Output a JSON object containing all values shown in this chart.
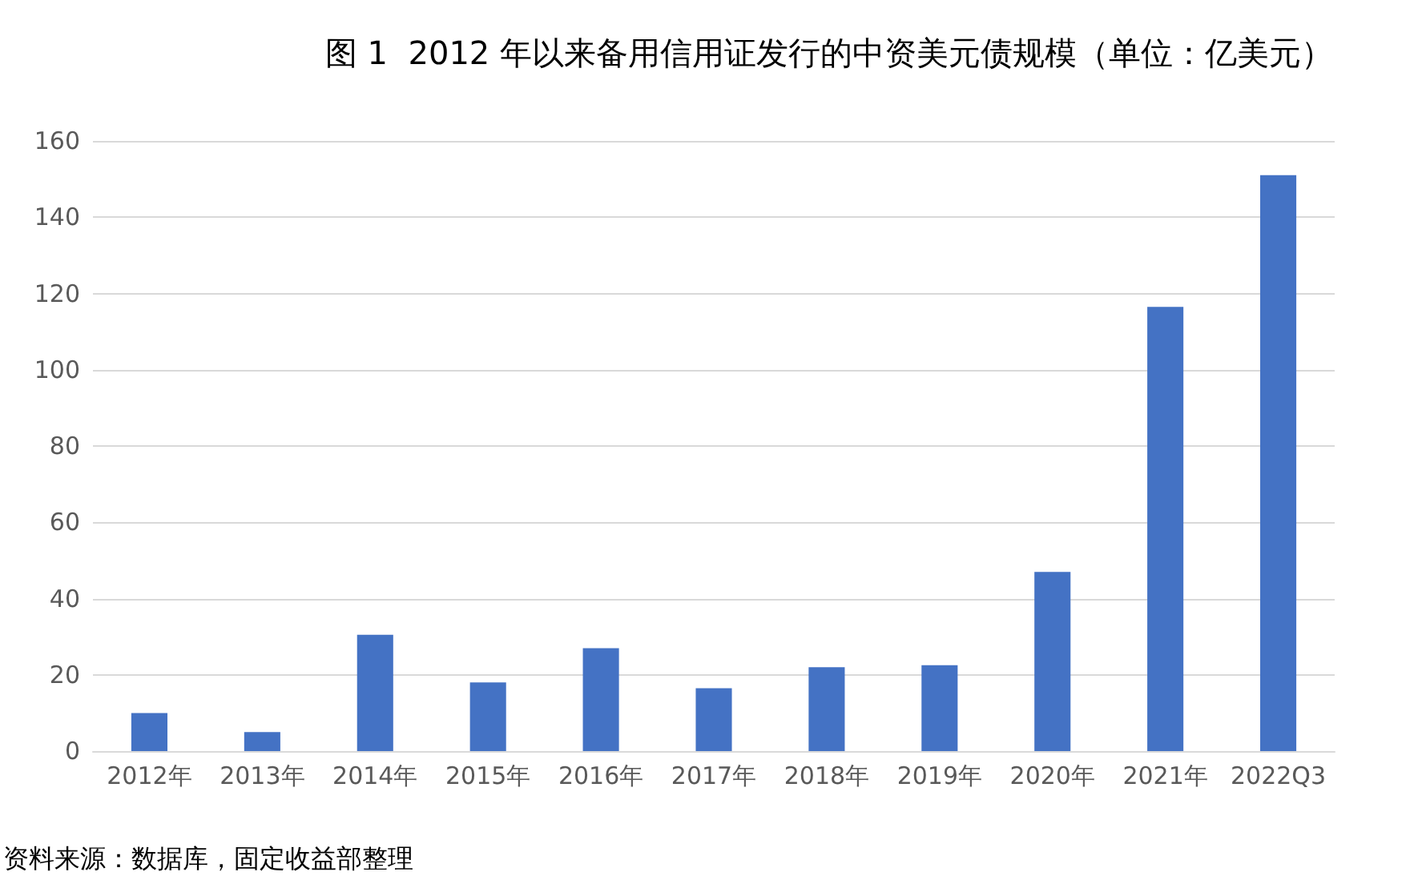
{
  "chart_data": {
    "type": "bar",
    "title": "图 1  2012 年以来备用信用证发行的中资美元债规模（单位：亿美元）",
    "categories": [
      "2012年",
      "2013年",
      "2014年",
      "2015年",
      "2016年",
      "2017年",
      "2018年",
      "2019年",
      "2020年",
      "2021年",
      "2022Q3"
    ],
    "values": [
      10,
      5,
      30.5,
      18,
      27,
      16.5,
      22,
      22.5,
      47,
      116.5,
      151
    ],
    "color": "#4472c4",
    "ylim": [
      0,
      160
    ],
    "yticks": [
      0,
      20,
      40,
      60,
      80,
      100,
      120,
      140,
      160
    ],
    "grid": "y",
    "annotations": [
      "资料来源：数据库，固定收益部整理"
    ]
  }
}
